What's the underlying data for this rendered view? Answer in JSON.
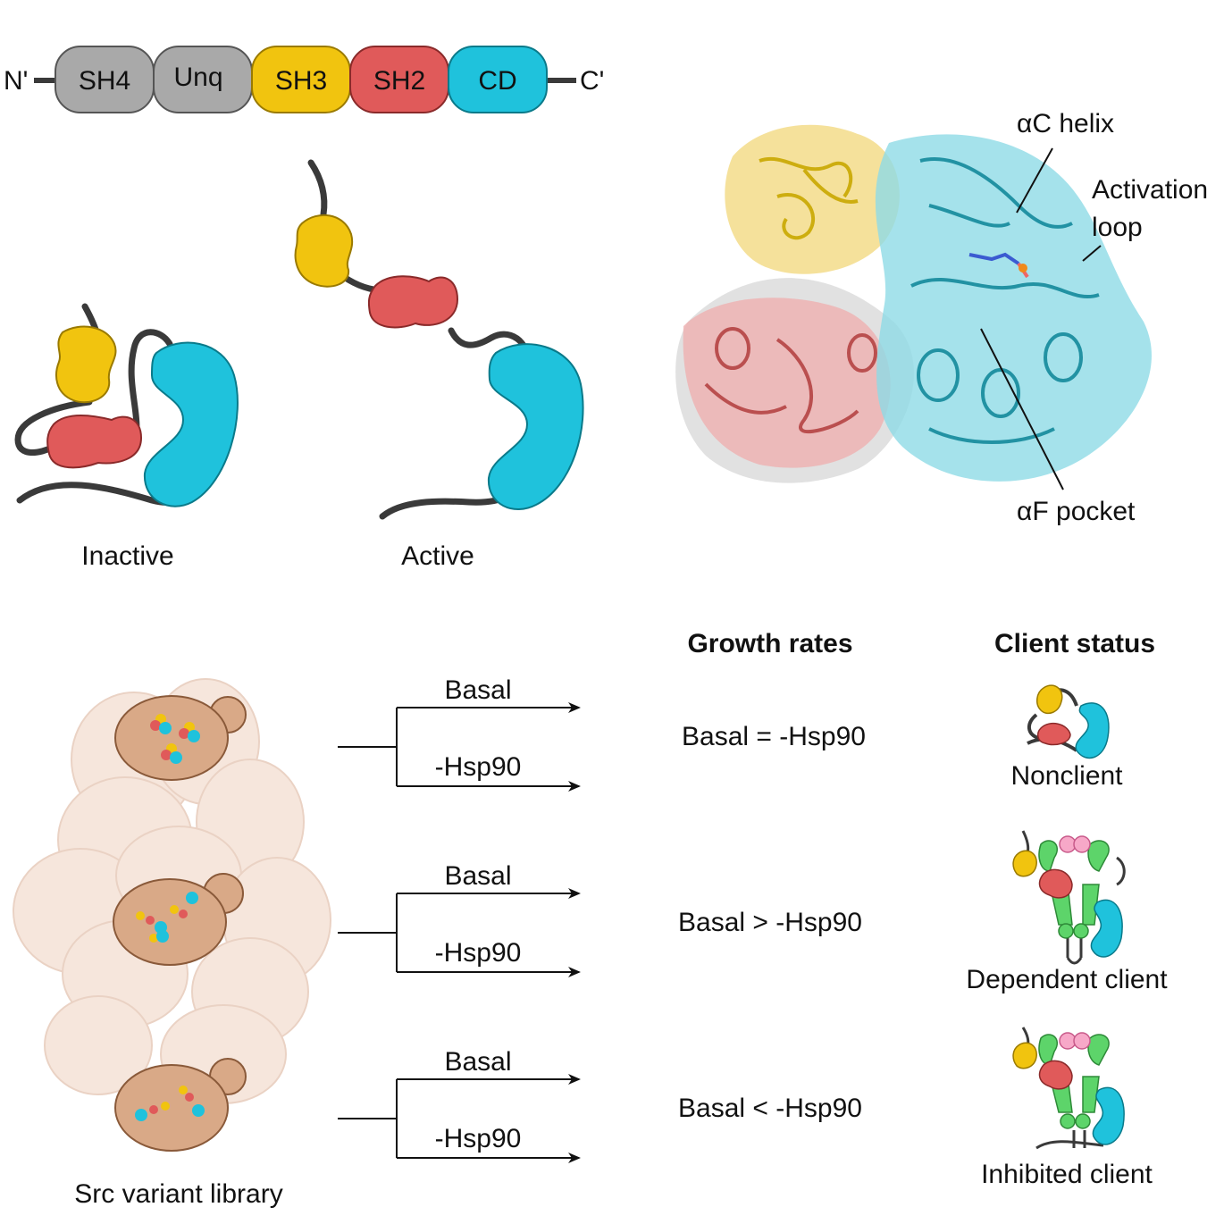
{
  "domains": {
    "n_term": "N'",
    "c_term": "C'",
    "items": [
      {
        "label": "SH4",
        "color": "#a9a9a9"
      },
      {
        "label": "Unq",
        "color": "#a9a9a9"
      },
      {
        "label": "SH3",
        "color": "#f1c40f"
      },
      {
        "label": "SH2",
        "color": "#e05a5a"
      },
      {
        "label": "CD",
        "color": "#1fc2dc"
      }
    ]
  },
  "states": {
    "inactive": "Inactive",
    "active": "Active"
  },
  "structure": {
    "ac_helix": "αC helix",
    "activation_loop_1": "Activation",
    "activation_loop_2": "loop",
    "af_pocket": "αF pocket"
  },
  "headers": {
    "growth": "Growth rates",
    "client": "Client status"
  },
  "library_label": "Src variant library",
  "rows": [
    {
      "branch_top": "Basal",
      "branch_bottom": "-Hsp90",
      "growth": "Basal = -Hsp90",
      "status": "Nonclient"
    },
    {
      "branch_top": "Basal",
      "branch_bottom": "-Hsp90",
      "growth": "Basal > -Hsp90",
      "status": "Dependent client"
    },
    {
      "branch_top": "Basal",
      "branch_bottom": "-Hsp90",
      "growth": "Basal < -Hsp90",
      "status": "Inhibited client"
    }
  ],
  "colors": {
    "sh3": "#f1c40f",
    "sh2": "#e05a5a",
    "cd": "#1fc2dc",
    "linker": "#3a3a3a",
    "hsp90": "#5dd46a",
    "cochaperone": "#f7a8c8",
    "yeast": "#d9a987",
    "yeast_bg": "#f6e6dc"
  }
}
